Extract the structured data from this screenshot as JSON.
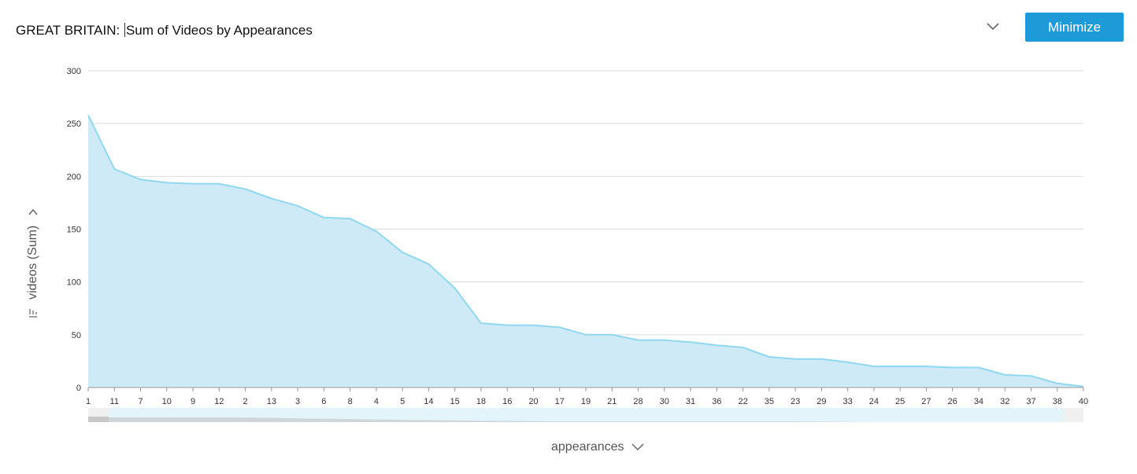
{
  "header": {
    "title_prefix": "GREAT BRITAIN: ",
    "title_main": "Sum of Videos by Appearances",
    "minimize_label": "Minimize"
  },
  "icons": {
    "dropdown": "chevron-down-icon",
    "sort": "sort-icon"
  },
  "colors": {
    "accent": "#1d9bd8",
    "area_fill": "#cdeaf6",
    "line": "#8fd8ef"
  },
  "chart_data": {
    "type": "area",
    "title": "GREAT BRITAIN: Sum of Videos by Appearances",
    "xlabel": "appearances",
    "ylabel": "videos (Sum)",
    "ylim": [
      0,
      300
    ],
    "yticks": [
      0,
      50,
      100,
      150,
      200,
      250,
      300
    ],
    "grid": true,
    "categories": [
      "1",
      "11",
      "7",
      "10",
      "9",
      "12",
      "2",
      "13",
      "3",
      "6",
      "8",
      "4",
      "5",
      "14",
      "15",
      "18",
      "16",
      "20",
      "17",
      "19",
      "21",
      "28",
      "30",
      "31",
      "36",
      "22",
      "35",
      "23",
      "29",
      "33",
      "24",
      "25",
      "27",
      "26",
      "34",
      "32",
      "37",
      "38",
      "40"
    ],
    "series": [
      {
        "values": [
          258,
          207,
          197,
          194,
          193,
          193,
          188,
          179,
          172,
          161,
          160,
          148,
          128,
          117,
          94,
          61,
          59,
          59,
          57,
          50,
          50,
          45,
          45,
          43,
          40,
          38,
          29,
          27,
          27,
          24,
          20,
          20,
          20,
          19,
          19,
          12,
          11,
          4,
          1
        ]
      }
    ]
  }
}
